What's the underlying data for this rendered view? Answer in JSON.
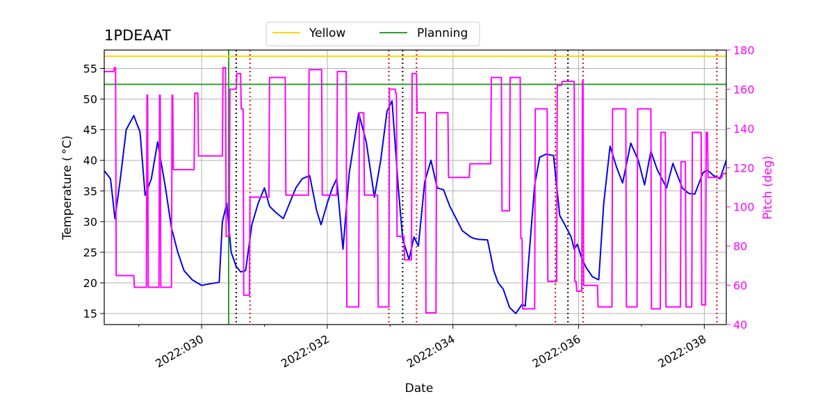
{
  "chart_data": {
    "type": "line",
    "title": "1PDEAAT",
    "xlabel": "Date",
    "ylabel": "Temperature ($^\\circ$C)",
    "ylabel_display": "Temperature ( °C)",
    "y2label": "Pitch (deg)",
    "xlim": [
      2022028.45,
      2022038.35
    ],
    "ylim": [
      13.2,
      58.0
    ],
    "y2lim": [
      40,
      180
    ],
    "x_ticks": [
      {
        "value": 2022030,
        "label": "2022:030"
      },
      {
        "value": 2022032,
        "label": "2022:032"
      },
      {
        "value": 2022034,
        "label": "2022:034"
      },
      {
        "value": 2022036,
        "label": "2022:036"
      },
      {
        "value": 2022038,
        "label": "2022:038"
      }
    ],
    "x_minor_ticks": [
      2022029,
      2022031,
      2022033,
      2022035,
      2022037
    ],
    "y_ticks": [
      15,
      20,
      25,
      30,
      35,
      40,
      45,
      50,
      55
    ],
    "y2_ticks": [
      40,
      60,
      80,
      100,
      120,
      140,
      160,
      180
    ],
    "colors": {
      "temperature": "#0000ee",
      "pitch": "#ff00ff",
      "yellow": "#ffd700",
      "planning": "#2ca02c",
      "grid": "#b0b0b0",
      "red_dotted": "#ee0000",
      "black_dotted": "#000000"
    },
    "legend": {
      "position": "top-center",
      "entries": [
        {
          "name": "Yellow",
          "color": "#ffd700"
        },
        {
          "name": "Planning",
          "color": "#2ca02c"
        }
      ]
    },
    "horizontal_lines": [
      {
        "name": "Yellow",
        "y": 57.0
      },
      {
        "name": "Planning",
        "y": 52.4
      }
    ],
    "vertical_lines": [
      {
        "x": 2022030.43,
        "style": "solid",
        "color": "planning"
      },
      {
        "x": 2022030.55,
        "style": "dotted",
        "color": "black_dotted"
      },
      {
        "x": 2022030.77,
        "style": "dotted",
        "color": "red_dotted"
      },
      {
        "x": 2022032.98,
        "style": "dotted",
        "color": "red_dotted"
      },
      {
        "x": 2022033.2,
        "style": "dotted",
        "color": "black_dotted"
      },
      {
        "x": 2022033.42,
        "style": "dotted",
        "color": "red_dotted"
      },
      {
        "x": 2022035.63,
        "style": "dotted",
        "color": "red_dotted"
      },
      {
        "x": 2022035.83,
        "style": "dotted",
        "color": "black_dotted"
      },
      {
        "x": 2022036.07,
        "style": "dotted",
        "color": "red_dotted"
      },
      {
        "x": 2022038.2,
        "style": "dotted",
        "color": "red_dotted"
      }
    ],
    "series": [
      {
        "name": "Temperature",
        "axis": "left",
        "x": [
          2022028.45,
          2022028.55,
          2022028.62,
          2022028.7,
          2022028.8,
          2022028.92,
          2022029.02,
          2022029.1,
          2022029.2,
          2022029.3,
          2022029.42,
          2022029.52,
          2022029.62,
          2022029.72,
          2022029.85,
          2022030.0,
          2022030.1,
          2022030.28,
          2022030.33,
          2022030.4,
          2022030.47,
          2022030.55,
          2022030.62,
          2022030.7,
          2022030.8,
          2022030.9,
          2022031.0,
          2022031.08,
          2022031.18,
          2022031.3,
          2022031.42,
          2022031.5,
          2022031.6,
          2022031.72,
          2022031.83,
          2022031.9,
          2022032.0,
          2022032.08,
          2022032.15,
          2022032.25,
          2022032.35,
          2022032.5,
          2022032.62,
          2022032.75,
          2022032.85,
          2022032.95,
          2022033.03,
          2022033.13,
          2022033.2,
          2022033.3,
          2022033.38,
          2022033.45,
          2022033.55,
          2022033.65,
          2022033.75,
          2022033.85,
          2022033.95,
          2022034.05,
          2022034.15,
          2022034.28,
          2022034.32,
          2022034.4,
          2022034.55,
          2022034.65,
          2022034.72,
          2022034.8,
          2022034.9,
          2022035.0,
          2022035.1,
          2022035.15,
          2022035.2,
          2022035.3,
          2022035.38,
          2022035.48,
          2022035.6,
          2022035.7,
          2022035.78,
          2022035.88,
          2022035.93,
          2022035.98,
          2022036.05,
          2022036.12,
          2022036.22,
          2022036.32,
          2022036.4,
          2022036.5,
          2022036.6,
          2022036.7,
          2022036.83,
          2022036.95,
          2022037.05,
          2022037.15,
          2022037.25,
          2022037.3,
          2022037.4,
          2022037.5,
          2022037.65,
          2022037.75,
          2022037.85,
          2022037.98,
          2022038.05,
          2022038.15,
          2022038.25,
          2022038.35
        ],
        "y": [
          38.3,
          37.0,
          30.5,
          36.5,
          45.0,
          47.3,
          44.6,
          34.3,
          37.0,
          43.0,
          35.8,
          29.0,
          25.0,
          22.0,
          20.5,
          19.6,
          19.8,
          20.1,
          30.0,
          33.0,
          25.0,
          22.7,
          21.8,
          22.0,
          29.5,
          33.0,
          35.5,
          32.5,
          31.5,
          30.5,
          33.5,
          35.5,
          37.0,
          37.5,
          31.8,
          29.5,
          33.0,
          35.5,
          37.0,
          25.5,
          38.0,
          47.7,
          43.0,
          34.0,
          40.0,
          48.0,
          49.7,
          35.5,
          27.2,
          23.8,
          27.5,
          26.0,
          36.5,
          40.0,
          35.5,
          35.2,
          32.5,
          30.5,
          28.5,
          27.5,
          27.3,
          27.1,
          27.0,
          22.0,
          20.0,
          19.0,
          16.0,
          15.0,
          16.5,
          16.2,
          23.0,
          36.0,
          40.5,
          41.0,
          40.8,
          31.0,
          29.5,
          27.5,
          25.5,
          26.3,
          24.0,
          22.5,
          21.0,
          20.5,
          33.0,
          42.3,
          39.0,
          36.3,
          42.8,
          40.0,
          36.0,
          41.5,
          38.5,
          37.5,
          35.5,
          39.5,
          35.5,
          34.6,
          34.5,
          38.0,
          38.4,
          37.5,
          37.0,
          40.0
        ]
      },
      {
        "name": "Pitch",
        "axis": "right",
        "x": [
          2022028.45,
          2022028.6,
          2022028.61,
          2022028.63,
          2022028.64,
          2022028.92,
          2022028.93,
          2022029.12,
          2022029.13,
          2022029.14,
          2022029.15,
          2022029.32,
          2022029.33,
          2022029.34,
          2022029.35,
          2022029.52,
          2022029.53,
          2022029.54,
          2022029.55,
          2022029.88,
          2022029.89,
          2022029.94,
          2022029.95,
          2022030.33,
          2022030.34,
          2022030.38,
          2022030.39,
          2022030.44,
          2022030.45,
          2022030.55,
          2022030.56,
          2022030.62,
          2022030.63,
          2022030.66,
          2022030.67,
          2022030.76,
          2022030.77,
          2022031.07,
          2022031.08,
          2022031.33,
          2022031.34,
          2022031.7,
          2022031.71,
          2022031.91,
          2022031.92,
          2022032.15,
          2022032.16,
          2022032.3,
          2022032.31,
          2022032.5,
          2022032.51,
          2022032.58,
          2022032.59,
          2022032.8,
          2022032.81,
          2022032.98,
          2022032.99,
          2022033.08,
          2022033.09,
          2022033.1,
          2022033.11,
          2022033.22,
          2022033.23,
          2022033.34,
          2022033.35,
          2022033.42,
          2022033.43,
          2022033.56,
          2022033.57,
          2022033.73,
          2022033.74,
          2022033.92,
          2022033.93,
          2022034.26,
          2022034.27,
          2022034.6,
          2022034.61,
          2022034.77,
          2022034.78,
          2022034.9,
          2022034.91,
          2022035.07,
          2022035.08,
          2022035.1,
          2022035.11,
          2022035.3,
          2022035.31,
          2022035.5,
          2022035.51,
          2022035.65,
          2022035.66,
          2022035.73,
          2022035.74,
          2022035.93,
          2022035.94,
          2022035.96,
          2022035.97,
          2022036.05,
          2022036.06,
          2022036.07,
          2022036.08,
          2022036.3,
          2022036.31,
          2022036.53,
          2022036.54,
          2022036.75,
          2022036.76,
          2022036.93,
          2022036.94,
          2022037.15,
          2022037.16,
          2022037.3,
          2022037.31,
          2022037.38,
          2022037.39,
          2022037.62,
          2022037.63,
          2022037.7,
          2022037.71,
          2022037.8,
          2022037.81,
          2022037.95,
          2022037.96,
          2022038.02,
          2022038.03,
          2022038.05,
          2022038.06,
          2022038.28,
          2022038.29,
          2022038.35
        ],
        "y": [
          169,
          169,
          171,
          171,
          65,
          65,
          59,
          59,
          157,
          157,
          59,
          59,
          157,
          157,
          59,
          59,
          157,
          157,
          119,
          119,
          158,
          158,
          126,
          126,
          171,
          171,
          85,
          85,
          160,
          160,
          168,
          168,
          150,
          150,
          55,
          55,
          105,
          105,
          166,
          166,
          106,
          106,
          170,
          170,
          106,
          106,
          169,
          169,
          49,
          49,
          148,
          148,
          106,
          106,
          49,
          49,
          160,
          160,
          158,
          158,
          85,
          85,
          73,
          73,
          168,
          168,
          148,
          148,
          46,
          46,
          148,
          148,
          115,
          115,
          122,
          122,
          166,
          166,
          98,
          98,
          166,
          166,
          84,
          84,
          48,
          48,
          150,
          150,
          62,
          62,
          162,
          162,
          164,
          164,
          62,
          62,
          57,
          57,
          164,
          164,
          60,
          60,
          49,
          49,
          150,
          150,
          49,
          49,
          150,
          150,
          48,
          48,
          138,
          138,
          49,
          49,
          123,
          123,
          49,
          49,
          138,
          138,
          50,
          50,
          138,
          138,
          115,
          115,
          117,
          117
        ]
      }
    ]
  }
}
